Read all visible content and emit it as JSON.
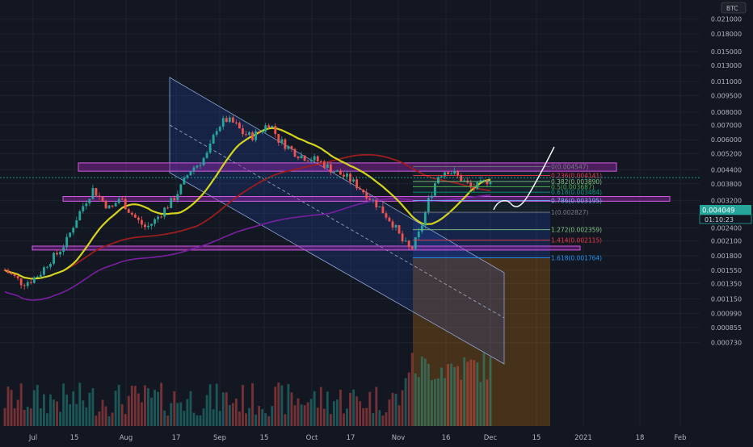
{
  "symbol_badge": "BTC",
  "price_axis": {
    "ticks": [
      "0.021000",
      "0.018000",
      "0.015000",
      "0.013000",
      "0.011000",
      "0.009500",
      "0.008000",
      "0.007000",
      "0.006000",
      "0.005200",
      "0.004400",
      "0.003800",
      "0.003200",
      "0.002800",
      "0.002400",
      "0.002100",
      "0.001800",
      "0.001550",
      "0.001350",
      "0.001150",
      "0.000990",
      "0.000855",
      "0.000730"
    ],
    "current_price": "0.004049",
    "countdown": "01:10:23"
  },
  "time_axis": [
    "Jul",
    "15",
    "Aug",
    "17",
    "Sep",
    "15",
    "Oct",
    "17",
    "Nov",
    "16",
    "Dec",
    "15",
    "2021",
    "18",
    "Feb"
  ],
  "fib_levels": [
    {
      "ratio": "0",
      "text": "0(0.004547)",
      "color": "#787b86"
    },
    {
      "ratio": "0.236",
      "text": "0.236(0.004141)",
      "color": "#f23645"
    },
    {
      "ratio": "0.382",
      "text": "0.382(0.003890)",
      "color": "#81c784"
    },
    {
      "ratio": "0.5",
      "text": "0.5(0.003687)",
      "color": "#4caf50"
    },
    {
      "ratio": "0.618",
      "text": "0.618(0.003484)",
      "color": "#089981"
    },
    {
      "ratio": "0.786",
      "text": "0.786(0.003195)",
      "color": "#64b5f6"
    },
    {
      "ratio": "1",
      "text": "1(0.002827)",
      "color": "#787b86"
    },
    {
      "ratio": "1.272",
      "text": "1.272(0.002359)",
      "color": "#81c784"
    },
    {
      "ratio": "1.414",
      "text": "1.414(0.002115)",
      "color": "#f23645"
    },
    {
      "ratio": "1.618",
      "text": "1.618(0.001764)",
      "color": "#2196f3"
    }
  ],
  "chart_data": {
    "type": "candlestick",
    "y_scale": "log",
    "ylim": [
      0.00068,
      0.021
    ],
    "x_ticks": [
      "Jul",
      "15",
      "Aug",
      "17",
      "Sep",
      "15",
      "Oct",
      "17",
      "Nov",
      "16",
      "Dec",
      "15",
      "2021",
      "18",
      "Feb"
    ],
    "close_series_approx": [
      0.00155,
      0.00145,
      0.00135,
      0.0014,
      0.0015,
      0.0017,
      0.00185,
      0.0021,
      0.0026,
      0.0031,
      0.0036,
      0.0032,
      0.0029,
      0.0033,
      0.0029,
      0.0026,
      0.0024,
      0.0026,
      0.0029,
      0.0032,
      0.0037,
      0.0044,
      0.0047,
      0.0052,
      0.0068,
      0.0074,
      0.0071,
      0.0064,
      0.0062,
      0.0066,
      0.0072,
      0.006,
      0.0056,
      0.0052,
      0.005,
      0.0049,
      0.0047,
      0.0044,
      0.0042,
      0.004,
      0.0037,
      0.0034,
      0.0031,
      0.0028,
      0.0025,
      0.0021,
      0.0019,
      0.0023,
      0.0032,
      0.0041,
      0.0044,
      0.0042,
      0.0039,
      0.0036,
      0.0038,
      0.004
    ],
    "horizontal_zones": [
      [
        0.00433,
        0.00472
      ],
      [
        0.00317,
        0.00333
      ],
      [
        0.00191,
        0.00199
      ]
    ],
    "moving_averages": [
      "yellow",
      "dark red",
      "purple"
    ],
    "current_price": 0.004049,
    "grid": true
  },
  "colors": {
    "up": "#26a69a",
    "down": "#ef5350",
    "ma_fast": "#d4d41f",
    "ma_mid": "#9c1d1d",
    "ma_slow": "#7b1fa2",
    "zone": "#9c27b0",
    "channel": "#2962ff",
    "current": "#26a69a"
  }
}
